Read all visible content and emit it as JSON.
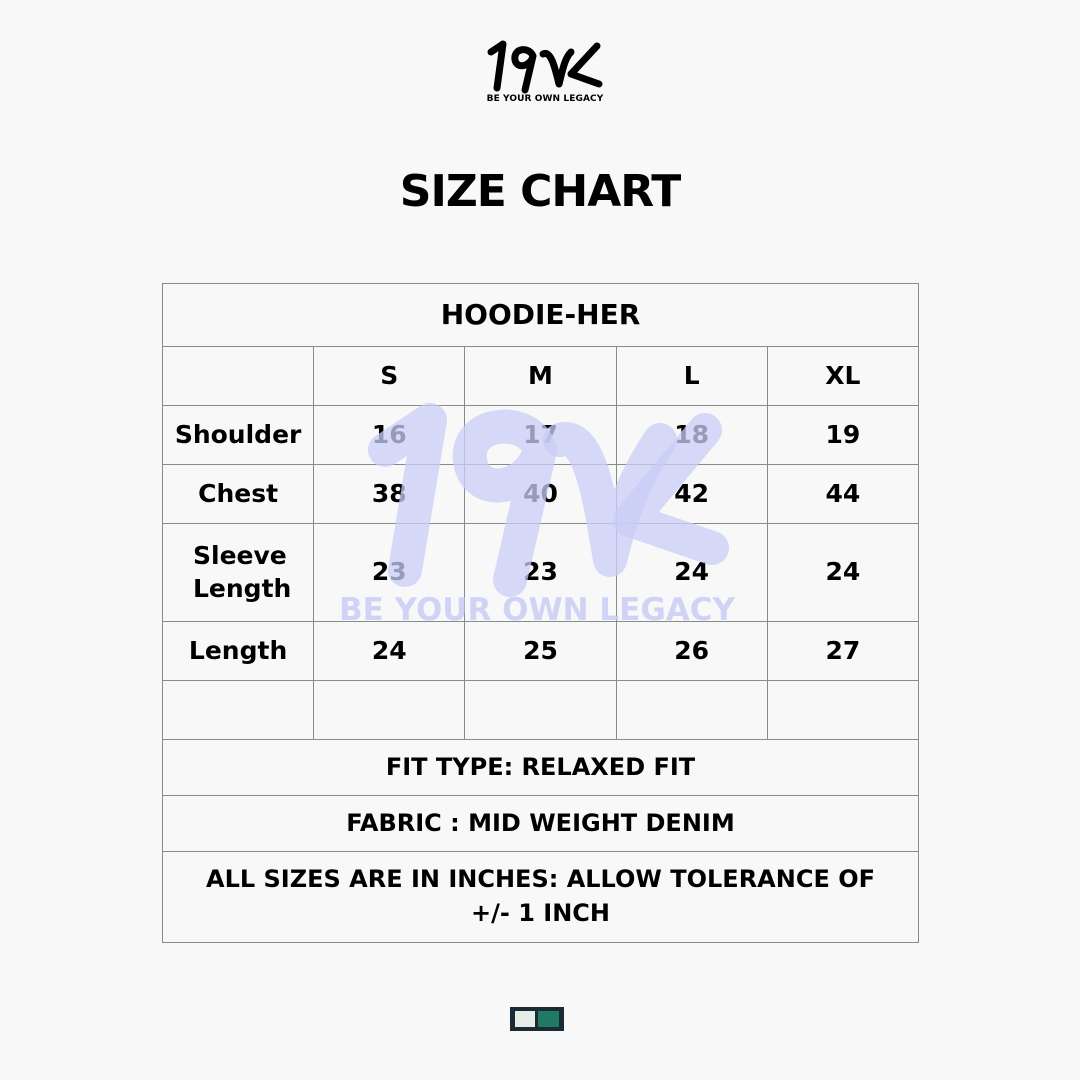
{
  "brand": {
    "logo_text": "19VK",
    "tagline": "BE YOUR OWN LEGACY"
  },
  "title": "SIZE CHART",
  "watermark": {
    "logo_text": "19VK",
    "tagline": "BE YOUR OWN LEGACY",
    "color": "#c9cdf6"
  },
  "table": {
    "product": "HOODIE-HER",
    "sizes": [
      "S",
      "M",
      "L",
      "XL"
    ],
    "rows": [
      {
        "label": "Shoulder",
        "values": [
          "16",
          "17",
          "18",
          "19"
        ]
      },
      {
        "label": "Chest",
        "values": [
          "38",
          "40",
          "42",
          "44"
        ]
      },
      {
        "label": "Sleeve Length",
        "values": [
          "23",
          "23",
          "24",
          "24"
        ]
      },
      {
        "label": "Length",
        "values": [
          "24",
          "25",
          "26",
          "27"
        ]
      }
    ],
    "fit_type": "FIT TYPE: RELAXED FIT",
    "fabric": "FABRIC : MID WEIGHT DENIM",
    "note": "ALL SIZES ARE IN INCHES: ALLOW TOLERANCE OF +/- 1 INCH"
  },
  "swatch_colors": [
    "#e6ece6",
    "#1e7a62"
  ]
}
